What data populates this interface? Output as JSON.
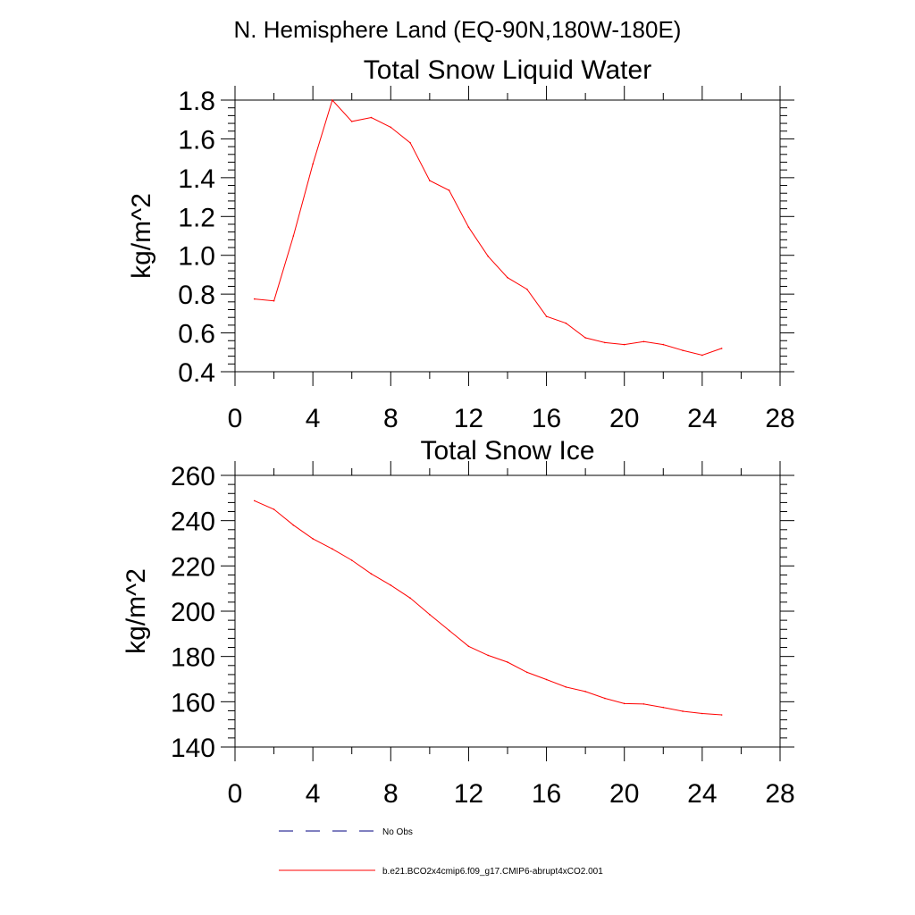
{
  "figure_title": "N. Hemisphere Land (EQ-90N,180W-180E)",
  "colors": {
    "series": "#ff0000",
    "obs": "#000080",
    "axis": "#000000"
  },
  "legend": [
    {
      "label": "No Obs",
      "style": "dashed",
      "color": "#000080"
    },
    {
      "label": "b.e21.BCO2x4cmip6.f09_g17.CMIP6-abrupt4xCO2.001",
      "style": "solid",
      "color": "#ff0000"
    }
  ],
  "chart_data": [
    {
      "type": "line",
      "title": "Total Snow Liquid Water",
      "xlabel": "",
      "ylabel": "kg/m^2",
      "xlim": [
        0,
        28
      ],
      "ylim": [
        0.4,
        1.8
      ],
      "xticks": [
        0,
        4,
        8,
        12,
        16,
        20,
        24,
        28
      ],
      "xtick_labels": [
        "0",
        "4",
        "8",
        "12",
        "16",
        "20",
        "24",
        "28"
      ],
      "yticks": [
        0.4,
        0.6,
        0.8,
        1.0,
        1.2,
        1.4,
        1.6,
        1.8
      ],
      "ytick_labels": [
        "0.4",
        "0.6",
        "0.8",
        "1.0",
        "1.2",
        "1.4",
        "1.6",
        "1.8"
      ],
      "series": [
        {
          "name": "b.e21.BCO2x4cmip6.f09_g17.CMIP6-abrupt4xCO2.001",
          "x": [
            1,
            2,
            3,
            4,
            5,
            6,
            7,
            8,
            9,
            10,
            11,
            12,
            13,
            14,
            15,
            16,
            17,
            18,
            19,
            20,
            21,
            22,
            23,
            24,
            25
          ],
          "values": [
            0.775,
            0.765,
            1.1,
            1.47,
            1.8,
            1.69,
            1.71,
            1.66,
            1.58,
            1.385,
            1.335,
            1.145,
            0.995,
            0.885,
            0.825,
            0.685,
            0.65,
            0.575,
            0.55,
            0.54,
            0.555,
            0.54,
            0.51,
            0.485,
            0.52
          ]
        }
      ]
    },
    {
      "type": "line",
      "title": "Total Snow Ice",
      "xlabel": "",
      "ylabel": "kg/m^2",
      "xlim": [
        0,
        28
      ],
      "ylim": [
        140,
        260
      ],
      "xticks": [
        0,
        4,
        8,
        12,
        16,
        20,
        24,
        28
      ],
      "xtick_labels": [
        "0",
        "4",
        "8",
        "12",
        "16",
        "20",
        "24",
        "28"
      ],
      "yticks": [
        140,
        160,
        180,
        200,
        220,
        240,
        260
      ],
      "ytick_labels": [
        "140",
        "160",
        "180",
        "200",
        "220",
        "240",
        "260"
      ],
      "series": [
        {
          "name": "b.e21.BCO2x4cmip6.f09_g17.CMIP6-abrupt4xCO2.001",
          "x": [
            1,
            2,
            3,
            4,
            5,
            6,
            7,
            8,
            9,
            10,
            11,
            12,
            13,
            14,
            15,
            16,
            17,
            18,
            19,
            20,
            21,
            22,
            23,
            24,
            25
          ],
          "values": [
            248.8,
            245,
            238,
            232,
            227.5,
            222.5,
            216.5,
            211.5,
            205.8,
            198.5,
            191.5,
            184.5,
            180.5,
            177.5,
            173,
            169.8,
            166.5,
            164.5,
            161.5,
            159.2,
            159,
            157.5,
            155.8,
            154.8,
            154.2
          ]
        }
      ]
    }
  ]
}
